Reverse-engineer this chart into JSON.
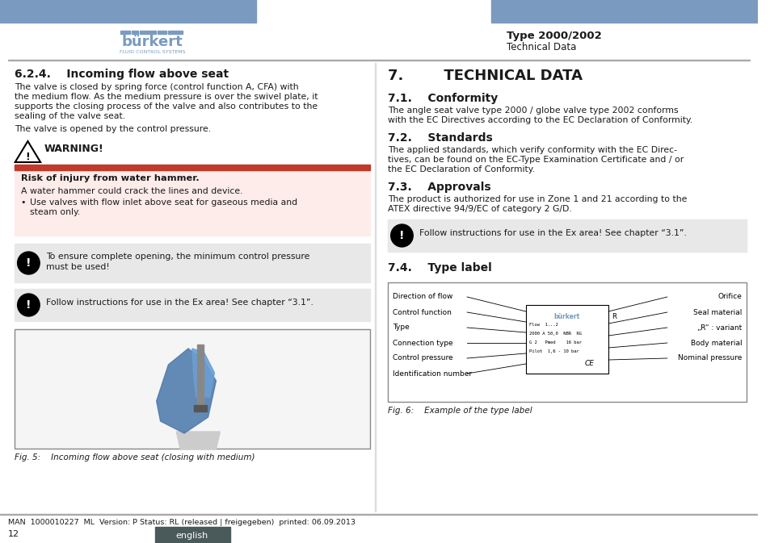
{
  "header_blue": "#7a9bbf",
  "page_bg": "#ffffff",
  "text_color": "#1a1a1a",
  "blue_text": "#7a9bbf",
  "title_right": "Type 2000/2002",
  "subtitle_right": "Technical Data",
  "section_left_title": "6.2.4.    Incoming flow above seat",
  "section_left_p1a": "The valve is closed by spring force (control function A, CFA) with",
  "section_left_p1b": "the medium flow. As the medium pressure is over the swivel plate, it",
  "section_left_p1c": "supports the closing process of the valve and also contributes to the",
  "section_left_p1d": "sealing of the valve seat.",
  "section_left_p2": "The valve is opened by the control pressure.",
  "warning_title": "WARNING!",
  "warning_bg": "#fdecea",
  "warning_bold": "Risk of injury from water hammer.",
  "warning_text1": "A water hammer could crack the lines and device.",
  "warning_bullet": "Use valves with flow inlet above seat for gaseous media and",
  "warning_bullet2": "steam only.",
  "notice_bg": "#e8e8e8",
  "notice_text1a": "To ensure complete opening, the minimum control pressure",
  "notice_text1b": "must be used!",
  "notice_text2": "Follow instructions for use in the Ex area! See chapter “3.1”.",
  "fig5_caption": "Fig. 5:    Incoming flow above seat (closing with medium)",
  "section7_title": "7.        TECHNICAL DATA",
  "section71_title": "7.1.    Conformity",
  "section71_text1": "The angle seat valve type 2000 / globe valve type 2002 conforms",
  "section71_text2": "with the EC Directives according to the EC Declaration of Conformity.",
  "section72_title": "7.2.    Standards",
  "section72_text1": "The applied standards, which verify conformity with the EC Direc-",
  "section72_text2": "tives, can be found on the EC-Type Examination Certificate and / or",
  "section72_text3": "the EC Declaration of Conformity.",
  "section73_title": "7.3.    Approvals",
  "section73_text1": "The product is authorized for use in Zone 1 and 21 according to the",
  "section73_text2": "ATEX directive 94/9/EC of category 2 G/D.",
  "notice_right_text": "Follow instructions for use in the Ex area! See chapter “3.1”.",
  "section74_title": "7.4.    Type label",
  "fig6_caption": "Fig. 6:    Example of the type label",
  "footer_text": "MAN  1000010227  ML  Version: P Status: RL (released | freigegeben)  printed: 06.09.2013",
  "footer_page": "12",
  "footer_lang": "english",
  "footer_lang_bg": "#4a5a5a",
  "separator_color": "#aaaaaa",
  "type_label_left": [
    "Direction of flow",
    "Control function",
    "Type",
    "Connection type",
    "Control pressure",
    "Identification number"
  ],
  "type_label_right": [
    "Orifice",
    "Seal material",
    "„R“ : variant",
    "Body material",
    "Nominal pressure"
  ],
  "mini_label_lines": [
    "Flow  1...2",
    "2000 A 50,0  NBR  RG",
    "G 2   Pmed    16 bar",
    "Pilot  1,6 - 10 bar"
  ]
}
